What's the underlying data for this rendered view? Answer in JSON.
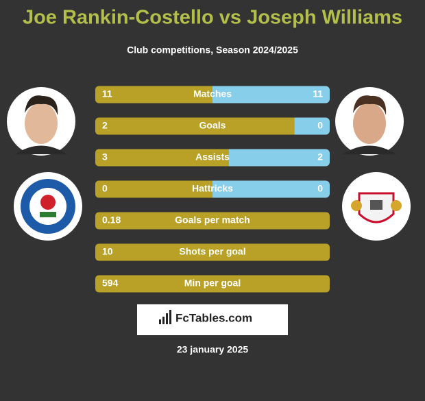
{
  "header": {
    "title": "Joe Rankin-Costello vs Joseph Williams",
    "subtitle": "Club competitions, Season 2024/2025"
  },
  "rows": [
    {
      "label": "Matches",
      "left": 11,
      "right": 11
    },
    {
      "label": "Goals",
      "left": 2,
      "right": 0
    },
    {
      "label": "Assists",
      "left": 3,
      "right": 2
    },
    {
      "label": "Hattricks",
      "left": 0,
      "right": 0
    },
    {
      "label": "Goals per match",
      "left": 0.18
    },
    {
      "label": "Shots per goal",
      "left": 10
    },
    {
      "label": "Min per goal",
      "left": 594
    }
  ],
  "footer": {
    "brand": "FcTables.com",
    "date": "23 january 2025"
  }
}
